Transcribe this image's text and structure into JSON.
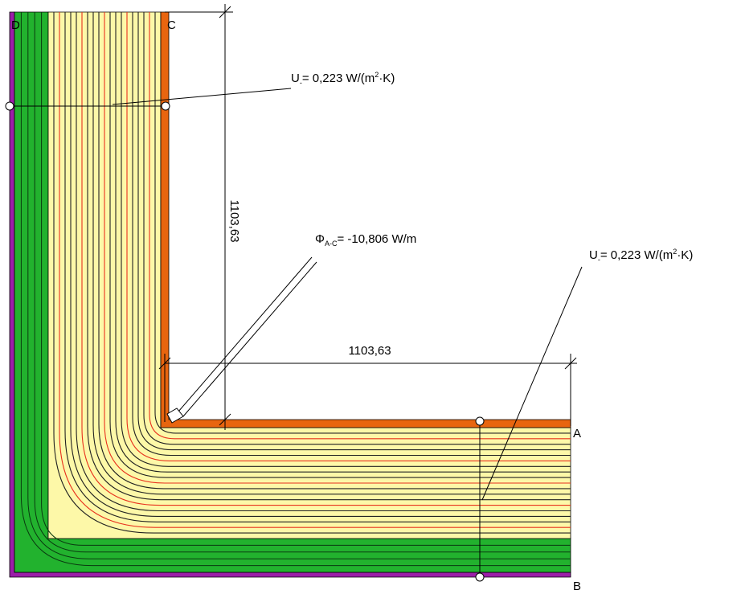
{
  "corners": {
    "d": "D",
    "c": "C",
    "a": "A",
    "b": "B"
  },
  "u_top": {
    "symbol": "U",
    "subscript": "-",
    "text": "= 0,223 W/(m",
    "superscript": "2",
    "text_end": "·K)"
  },
  "u_right": {
    "symbol": "U",
    "subscript": "-",
    "text": "= 0,223 W/(m",
    "superscript": "2",
    "text_end": "·K)"
  },
  "phi": {
    "symbol": "Φ",
    "subscript": "A-C",
    "text": "= -10,806 W/m"
  },
  "dimensions": {
    "vertical": "1103,63",
    "horizontal": "1103,63"
  }
}
